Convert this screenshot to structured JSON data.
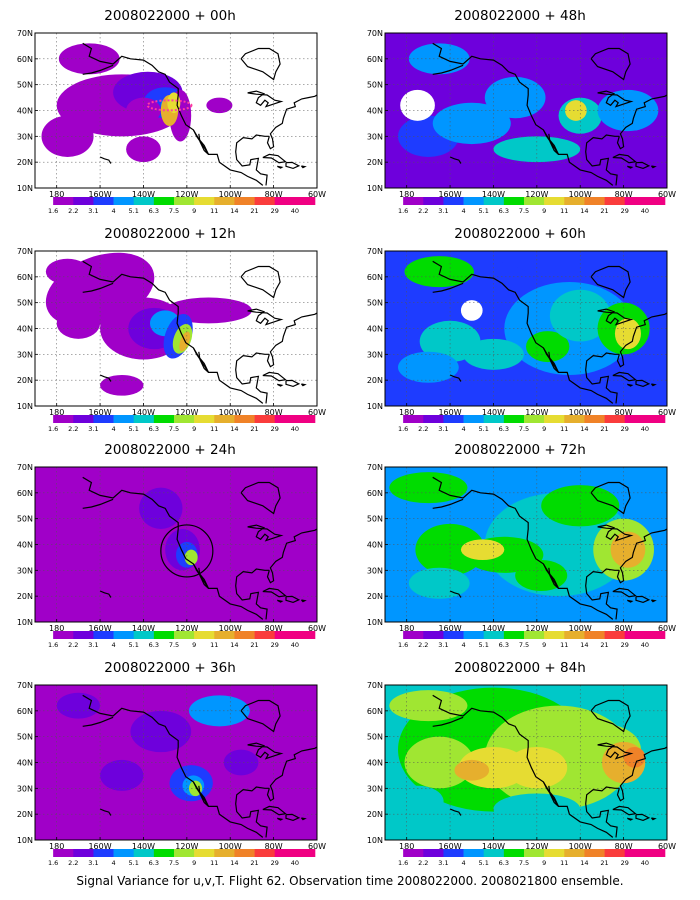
{
  "panels": [
    {
      "title": "2008022000 + 00h",
      "level": 0,
      "col": 0,
      "row": 0
    },
    {
      "title": "2008022000 + 48h",
      "level": 4,
      "col": 1,
      "row": 0
    },
    {
      "title": "2008022000 + 12h",
      "level": 1,
      "col": 0,
      "row": 1
    },
    {
      "title": "2008022000 + 60h",
      "level": 5,
      "col": 1,
      "row": 1
    },
    {
      "title": "2008022000 + 24h",
      "level": 2,
      "col": 0,
      "row": 2
    },
    {
      "title": "2008022000 + 72h",
      "level": 6,
      "col": 1,
      "row": 2
    },
    {
      "title": "2008022000 + 36h",
      "level": 3,
      "col": 0,
      "row": 3
    },
    {
      "title": "2008022000 + 84h",
      "level": 7,
      "col": 1,
      "row": 3
    }
  ],
  "lat_labels": [
    "10N",
    "20N",
    "30N",
    "40N",
    "50N",
    "60N",
    "70N"
  ],
  "lon_labels": [
    "180",
    "160W",
    "140W",
    "120W",
    "100W",
    "80W",
    "60W"
  ],
  "colorbar": {
    "labels": [
      "1.6",
      "2.2",
      "3.1",
      "4",
      "5.1",
      "6.3",
      "7.5",
      "9",
      "11",
      "14",
      "21",
      "29",
      "40"
    ],
    "colors": [
      "#ffffff",
      "#a000c8",
      "#6e00dc",
      "#1e3cff",
      "#0096ff",
      "#00c8c8",
      "#00dc00",
      "#a0e632",
      "#e6dc32",
      "#e6af2d",
      "#f08228",
      "#fa3c3c",
      "#f00082"
    ]
  },
  "caption": "Signal Variance for u,v,T. Flight 62. Observation time 2008022000. 2008021800 ensemble."
}
